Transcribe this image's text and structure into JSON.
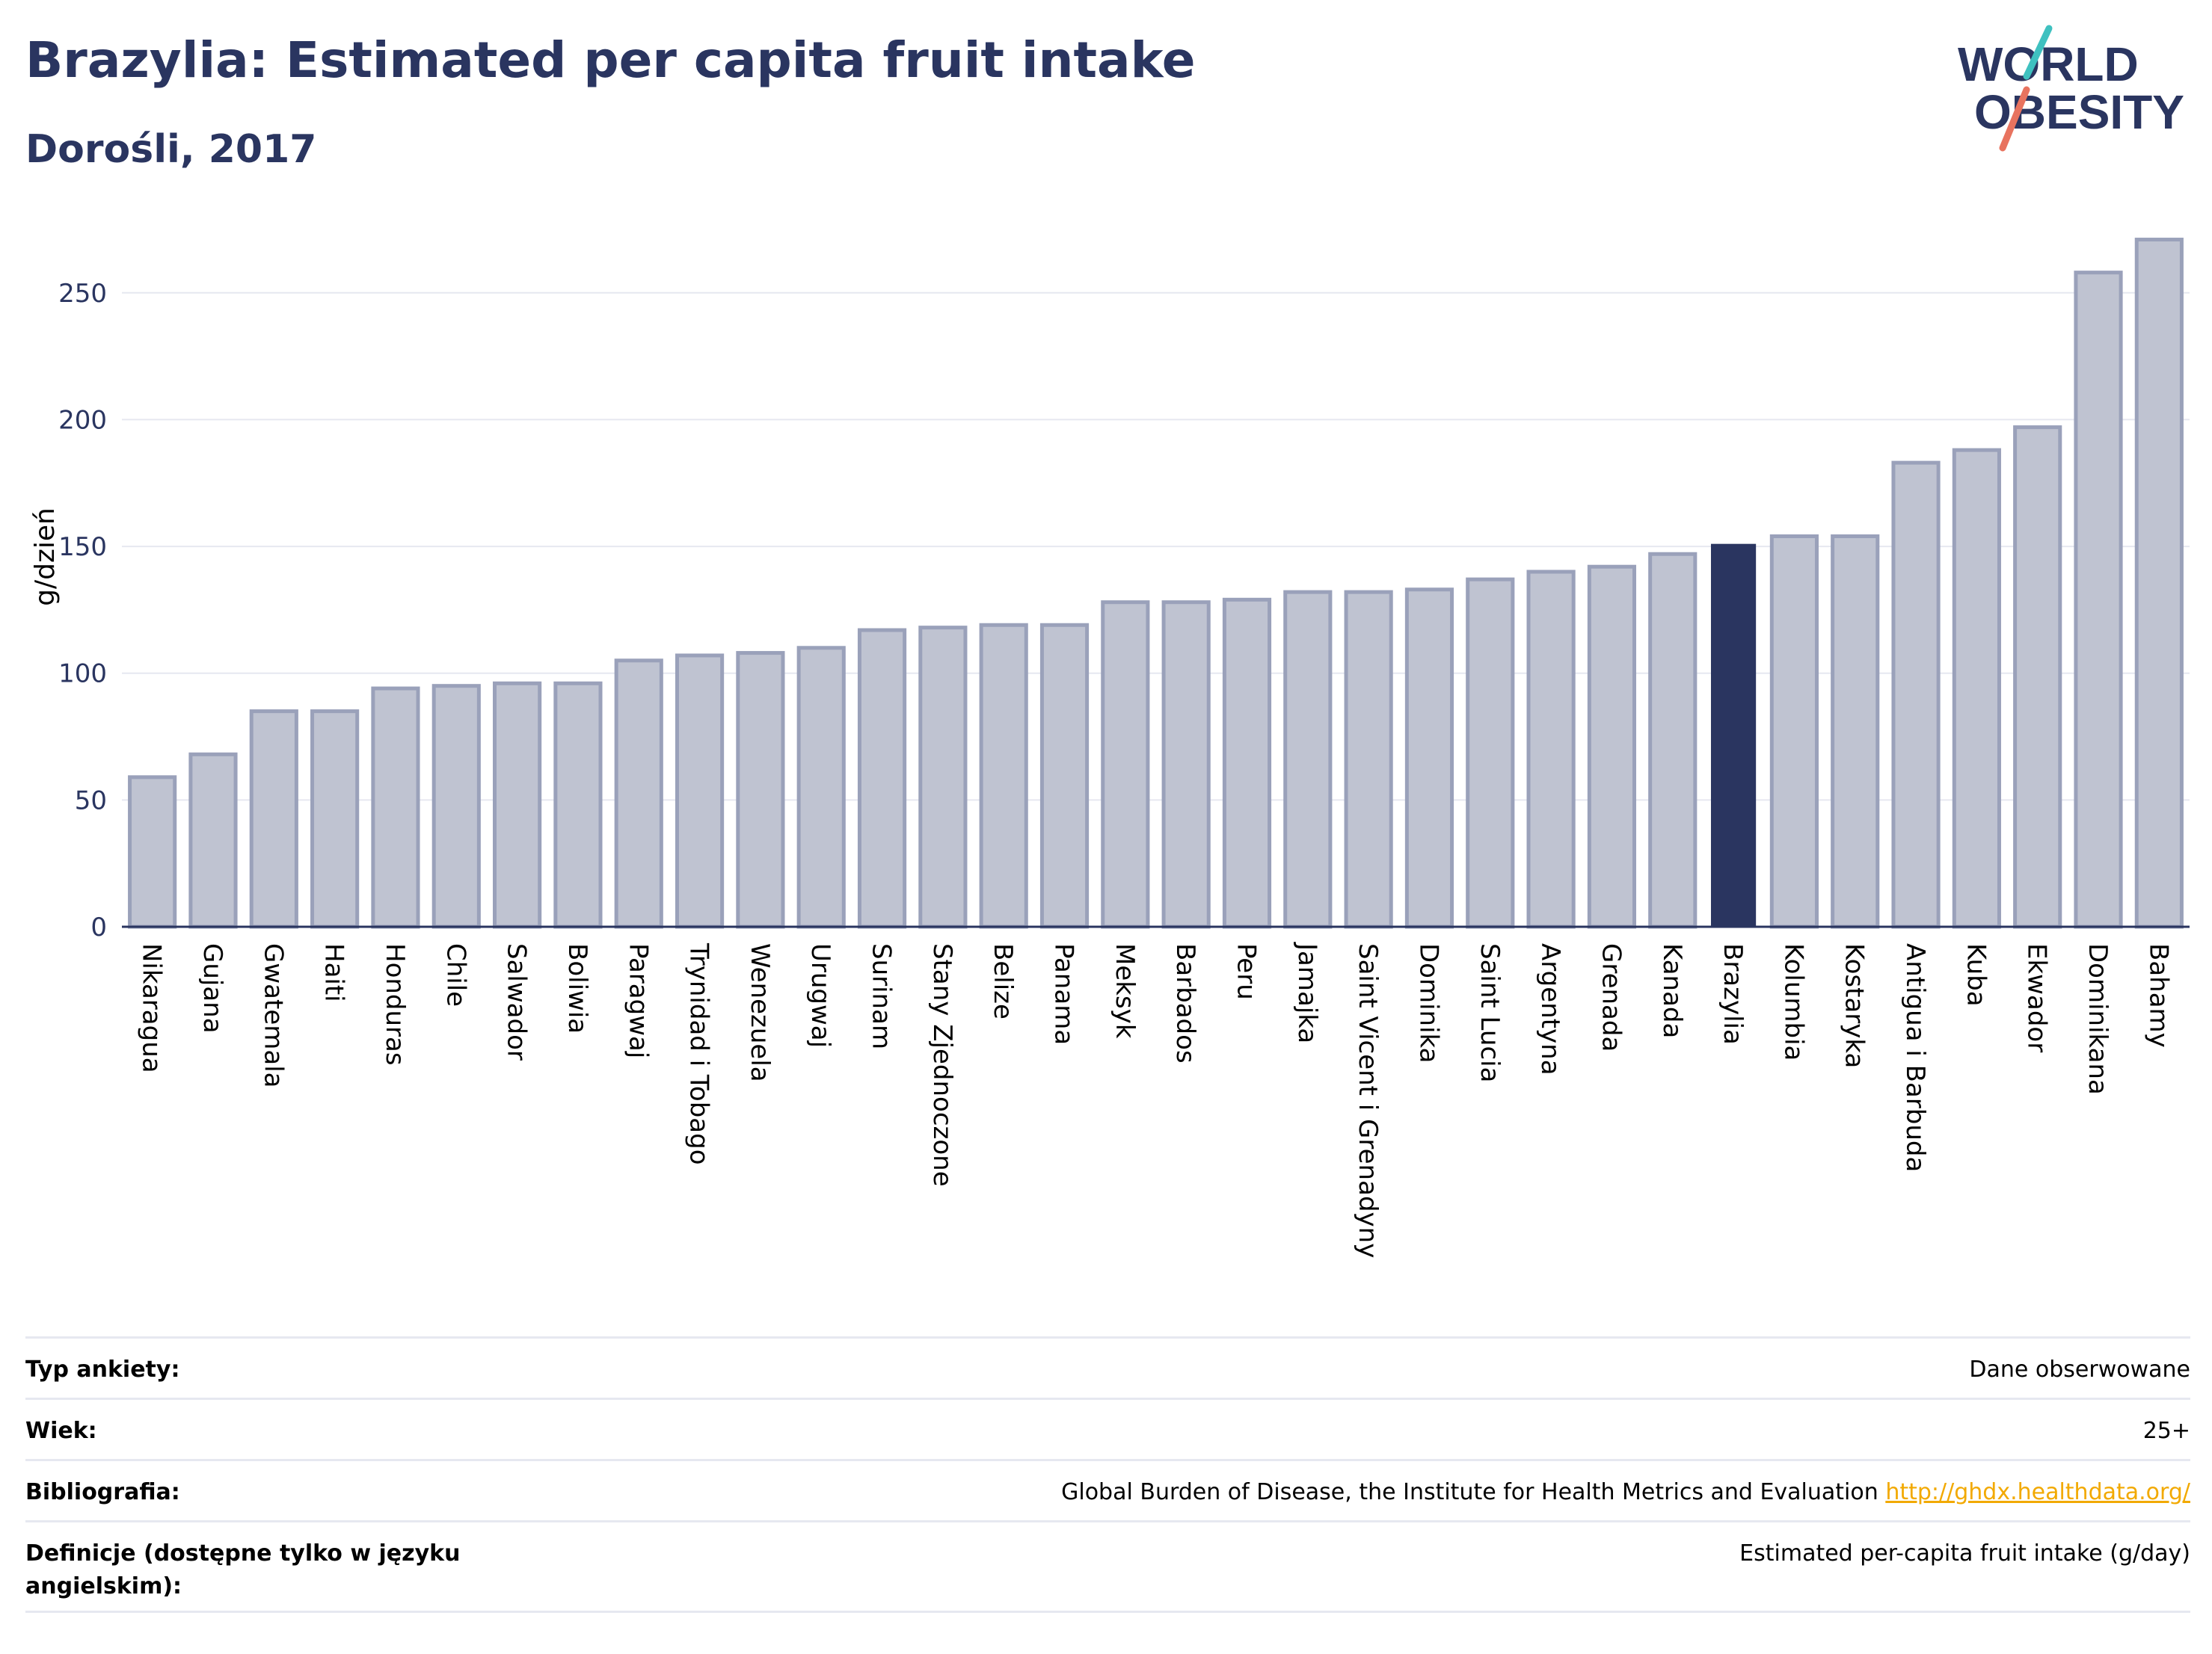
{
  "header": {
    "title": "Brazylia: Estimated per capita fruit intake",
    "subtitle": "Dorośli, 2017"
  },
  "logo": {
    "line1": "WORLD",
    "line2": "OBESITY"
  },
  "chart_data": {
    "type": "bar",
    "ylabel": "g/dzień",
    "xlabel": "",
    "ylim": [
      0,
      280
    ],
    "yticks": [
      0,
      50,
      100,
      150,
      200,
      250
    ],
    "grid": true,
    "highlight": "Brazylia",
    "colors": {
      "bar": "#bfc3d1",
      "bar_border": "#9aa1ba",
      "highlight": "#2a3560",
      "grid": "#e6e8f0",
      "axis": "#2a3560"
    },
    "categories": [
      "Nikaragua",
      "Gujana",
      "Gwatemala",
      "Haiti",
      "Honduras",
      "Chile",
      "Salwador",
      "Boliwia",
      "Paragwaj",
      "Trynidad i Tobago",
      "Wenezuela",
      "Urugwaj",
      "Surinam",
      "Stany Zjednoczone",
      "Belize",
      "Panama",
      "Meksyk",
      "Barbados",
      "Peru",
      "Jamajka",
      "Saint Vicent i Grenadyny",
      "Dominika",
      "Saint Lucia",
      "Argentyna",
      "Grenada",
      "Kanada",
      "Brazylia",
      "Kolumbia",
      "Kostaryka",
      "Antigua i Barbuda",
      "Kuba",
      "Ekwador",
      "Dominikana",
      "Bahamy"
    ],
    "values": [
      59,
      68,
      85,
      85,
      94,
      95,
      96,
      96,
      105,
      107,
      108,
      110,
      117,
      118,
      119,
      119,
      128,
      128,
      129,
      132,
      132,
      133,
      137,
      140,
      142,
      147,
      151,
      154,
      154,
      183,
      188,
      197,
      258,
      271
    ]
  },
  "meta": {
    "rows": [
      {
        "key": "Typ ankiety:",
        "value": "Dane obserwowane"
      },
      {
        "key": "Wiek:",
        "value": "25+"
      },
      {
        "key": "Bibliografia:",
        "value": "Global Burden of Disease, the Institute for Health Metrics and Evaluation",
        "link": "http://ghdx.healthdata.org/"
      },
      {
        "key": "Definicje (dostępne tylko w języku angielskim):",
        "value": "Estimated per-capita fruit intake (g/day)"
      }
    ]
  }
}
